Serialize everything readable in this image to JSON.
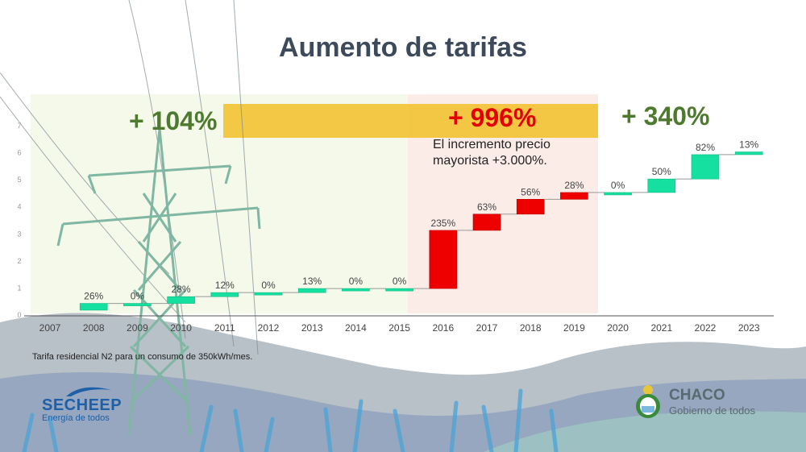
{
  "header": {
    "title": "Aumento de tarifas"
  },
  "highlights": {
    "period1": "+ 104%",
    "period2": "+ 996%",
    "period3": "+ 340%",
    "period2_note": "El incremento precio mayorista +3.000%."
  },
  "footnote": "Tarifa residencial N2 para un consumo de 350kWh/mes.",
  "logos": {
    "left_brand": "SECHEEP",
    "left_tag": "Energía de todos",
    "right_brand": "CHACO",
    "right_tag": "Gobierno de todos"
  },
  "colors": {
    "increase_green": "#16e0a0",
    "increase_red": "#ee0000",
    "period1_text": "#4d7a2e",
    "period2_text": "#e30000",
    "period3_text": "#4d7a2e",
    "band": "#f2c232"
  },
  "chart_data": {
    "type": "bar",
    "subtype": "waterfall",
    "categories": [
      "2007",
      "2008",
      "2009",
      "2010",
      "2011",
      "2012",
      "2013",
      "2014",
      "2015",
      "2016",
      "2017",
      "2018",
      "2019",
      "2020",
      "2021",
      "2022",
      "2023"
    ],
    "values": [
      null,
      "26%",
      "0%",
      "28%",
      "12%",
      "0%",
      "13%",
      "0%",
      "0%",
      "235%",
      "63%",
      "56%",
      "28%",
      "0%",
      "50%",
      "82%",
      "13%"
    ],
    "bar_ranges": [
      null,
      [
        0.15,
        0.4
      ],
      [
        0.4,
        0.4
      ],
      [
        0.4,
        0.65
      ],
      [
        0.65,
        0.8
      ],
      [
        0.8,
        0.8
      ],
      [
        0.8,
        0.95
      ],
      [
        0.95,
        0.95
      ],
      [
        0.95,
        0.95
      ],
      [
        0.95,
        3.1
      ],
      [
        3.1,
        3.7
      ],
      [
        3.7,
        4.25
      ],
      [
        4.25,
        4.5
      ],
      [
        4.5,
        4.5
      ],
      [
        4.5,
        5.0
      ],
      [
        5.0,
        5.9
      ],
      [
        5.9,
        6.0
      ]
    ],
    "bar_colors": [
      null,
      "green",
      "green",
      "green",
      "green",
      "green",
      "green",
      "green",
      "green",
      "red",
      "red",
      "red",
      "red",
      "green",
      "green",
      "green",
      "green"
    ],
    "y_ticks": [
      "0",
      "1",
      "2",
      "3",
      "4",
      "5",
      "6",
      "7"
    ],
    "ylim": [
      0,
      7
    ],
    "grid": false,
    "xlabel": "",
    "ylabel": ""
  }
}
